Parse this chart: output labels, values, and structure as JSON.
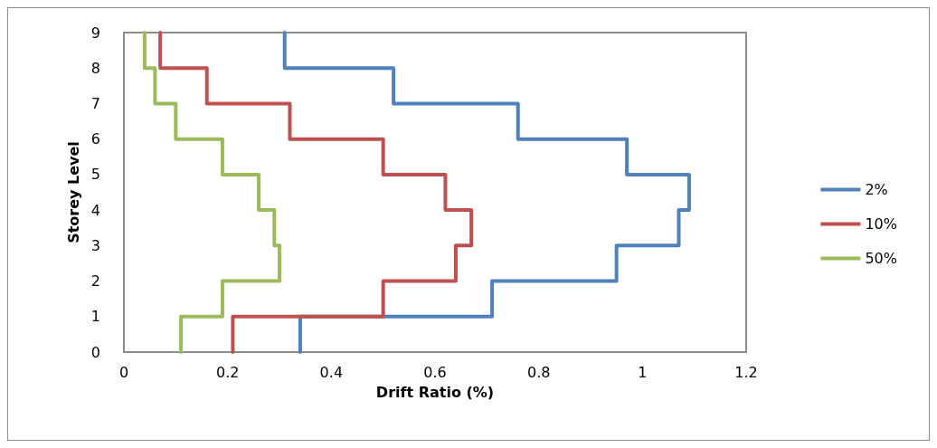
{
  "chart_data": {
    "type": "line",
    "xlabel": "Drift Ratio (%)",
    "ylabel": "Storey Level",
    "xlim": [
      0,
      1.2
    ],
    "xticks": [
      0,
      0.2,
      0.4,
      0.6,
      0.8,
      1,
      1.2
    ],
    "ylim": [
      0,
      9
    ],
    "yticks": [
      0,
      1,
      2,
      3,
      4,
      5,
      6,
      7,
      8,
      9
    ],
    "grid": false,
    "legend": "right",
    "marker": "none",
    "line_style": "solid",
    "series": [
      {
        "name": "2%",
        "color": "#4f81bd",
        "x": [
          0.34,
          0.34,
          0.71,
          0.71,
          0.95,
          0.95,
          1.07,
          1.07,
          1.09,
          1.09,
          0.97,
          0.97,
          0.76,
          0.76,
          0.52,
          0.52,
          0.31,
          0.31
        ],
        "values": [
          0,
          1,
          1,
          2,
          2,
          3,
          3,
          4,
          4,
          5,
          5,
          6,
          6,
          7,
          7,
          8,
          8,
          9
        ]
      },
      {
        "name": "10%",
        "color": "#c0504d",
        "x": [
          0.21,
          0.21,
          0.5,
          0.5,
          0.64,
          0.64,
          0.67,
          0.67,
          0.62,
          0.62,
          0.5,
          0.5,
          0.32,
          0.32,
          0.16,
          0.16,
          0.07,
          0.07
        ],
        "values": [
          0,
          1,
          1,
          2,
          2,
          3,
          3,
          4,
          4,
          5,
          5,
          6,
          6,
          7,
          7,
          8,
          8,
          9
        ]
      },
      {
        "name": "50%",
        "color": "#9bbb59",
        "x": [
          0.11,
          0.11,
          0.19,
          0.19,
          0.3,
          0.3,
          0.29,
          0.29,
          0.26,
          0.26,
          0.19,
          0.19,
          0.1,
          0.1,
          0.06,
          0.06,
          0.04,
          0.04
        ],
        "values": [
          0,
          1,
          1,
          2,
          2,
          3,
          3,
          4,
          4,
          5,
          5,
          6,
          6,
          7,
          7,
          8,
          8,
          9
        ]
      }
    ]
  }
}
